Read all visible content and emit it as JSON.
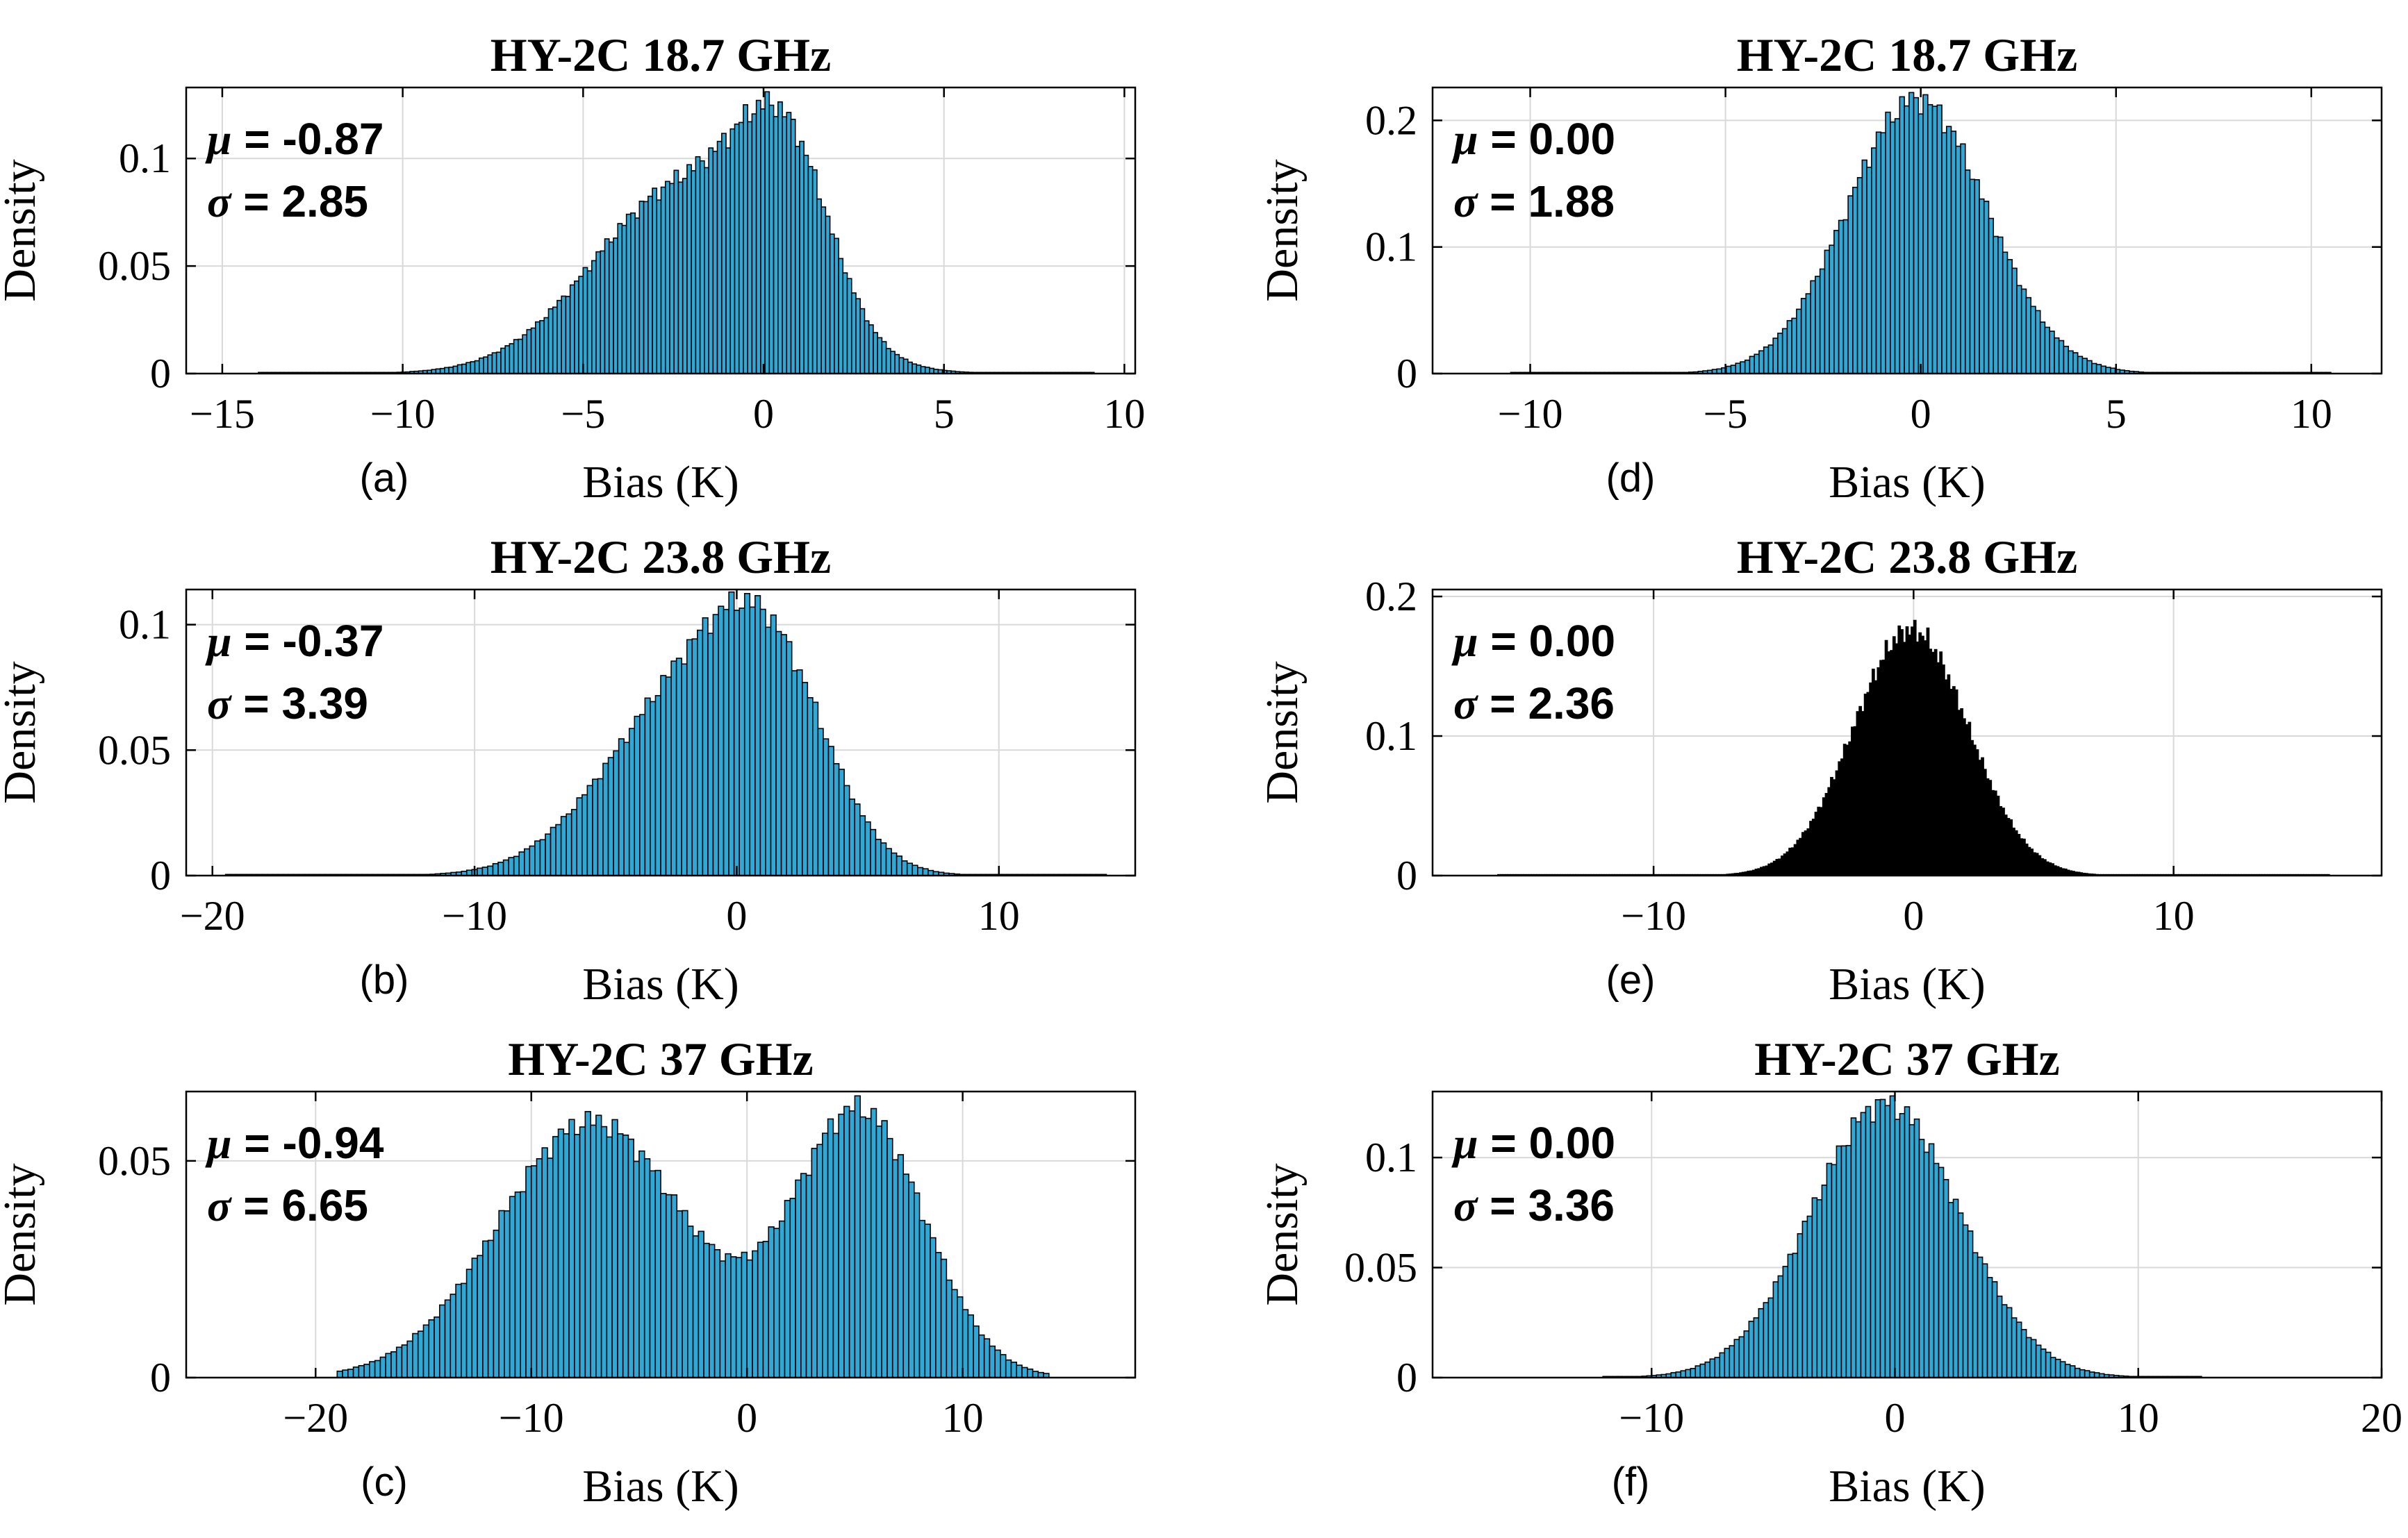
{
  "chart_data": [
    {
      "type": "bar",
      "panel_label": "(a)",
      "title": "HY-2C 18.7 GHz",
      "xlabel": "Bias (K)",
      "ylabel": "Density",
      "xlim": [
        -16,
        10.3
      ],
      "ylim": [
        0,
        0.133
      ],
      "xticks": [
        -15,
        -10,
        -5,
        0,
        5,
        10
      ],
      "xtick_labels": [
        "−15",
        "−10",
        "−5",
        "0",
        "5",
        "10"
      ],
      "yticks": [
        0,
        0.05,
        0.1
      ],
      "ytick_labels": [
        "0",
        "0.05",
        "0.1"
      ],
      "grid": true,
      "bin_range": [
        -14,
        9.2
      ],
      "bin_width": 0.12,
      "bar_color": "#2ea8d6",
      "mu_text": "= -0.87",
      "sigma_text": "= 2.85",
      "distribution": [
        {
          "weight": 0.7,
          "mean": -2.2,
          "sd": 2.5
        },
        {
          "weight": 0.3,
          "mean": 0.6,
          "sd": 1.25
        }
      ],
      "peak_density": 0.131
    },
    {
      "type": "bar",
      "panel_label": "(d)",
      "title": "HY-2C 18.7 GHz",
      "xlabel": "Bias (K)",
      "ylabel": "Density",
      "xlim": [
        -12.5,
        11.8
      ],
      "ylim": [
        0,
        0.226
      ],
      "xticks": [
        -10,
        -5,
        0,
        5,
        10
      ],
      "xtick_labels": [
        "−10",
        "−5",
        "0",
        "5",
        "10"
      ],
      "yticks": [
        0,
        0.1,
        0.2
      ],
      "ytick_labels": [
        "0",
        "0.1",
        "0.2"
      ],
      "grid": true,
      "bin_range": [
        -10.5,
        10.5
      ],
      "bin_width": 0.12,
      "bar_color": "#2ea8d6",
      "mu_text": "= 0.00",
      "sigma_text": "= 1.88",
      "distribution": [
        {
          "weight": 1.0,
          "mean": -0.1,
          "sd": 1.78
        }
      ],
      "peak_density": 0.222
    },
    {
      "type": "bar",
      "panel_label": "(b)",
      "title": "HY-2C 23.8 GHz",
      "xlabel": "Bias (K)",
      "ylabel": "Density",
      "xlim": [
        -21,
        15.2
      ],
      "ylim": [
        0,
        0.114
      ],
      "xticks": [
        -20,
        -10,
        0,
        10
      ],
      "xtick_labels": [
        "−20",
        "−10",
        "0",
        "10"
      ],
      "yticks": [
        0,
        0.05,
        0.1
      ],
      "ytick_labels": [
        "0",
        "0.05",
        "0.1"
      ],
      "grid": true,
      "bin_range": [
        -19.5,
        14
      ],
      "bin_width": 0.2,
      "bar_color": "#2ea8d6",
      "mu_text": "= -0.37",
      "sigma_text": "= 3.39",
      "distribution": [
        {
          "weight": 0.6,
          "mean": -2.0,
          "sd": 3.1
        },
        {
          "weight": 0.4,
          "mean": 1.3,
          "sd": 2.2
        }
      ],
      "peak_density": 0.113
    },
    {
      "type": "bar",
      "panel_label": "(e)",
      "title": "HY-2C 23.8 GHz",
      "xlabel": "Bias (K)",
      "ylabel": "Density",
      "xlim": [
        -18.5,
        18
      ],
      "ylim": [
        0,
        0.205
      ],
      "xticks": [
        -10,
        0,
        10
      ],
      "xtick_labels": [
        "−10",
        "0",
        "10"
      ],
      "yticks": [
        0,
        0.1,
        0.2
      ],
      "ytick_labels": [
        "0",
        "0.1",
        "0.2"
      ],
      "grid": true,
      "bin_range": [
        -16,
        16
      ],
      "bin_width": 0.1,
      "bar_color": "#000000",
      "mu_text": "= 0.00",
      "sigma_text": "= 2.36",
      "distribution": [
        {
          "weight": 1.0,
          "mean": -0.1,
          "sd": 2.2
        }
      ],
      "peak_density": 0.183
    },
    {
      "type": "bar",
      "panel_label": "(c)",
      "title": "HY-2C 37 GHz",
      "xlabel": "Bias (K)",
      "ylabel": "Density",
      "xlim": [
        -26,
        18
      ],
      "ylim": [
        0,
        0.066
      ],
      "xticks": [
        -20,
        -10,
        0,
        10
      ],
      "xtick_labels": [
        "−20",
        "−10",
        "0",
        "10"
      ],
      "yticks": [
        0,
        0.05
      ],
      "ytick_labels": [
        "0",
        "0.05"
      ],
      "grid": true,
      "bin_range": [
        -19,
        14
      ],
      "bin_width": 0.25,
      "bar_color": "#2ea8d6",
      "mu_text": "= -0.94",
      "sigma_text": "= 6.65",
      "distribution": [
        {
          "weight": 0.58,
          "mean": -7.2,
          "sd": 4.3
        },
        {
          "weight": 0.42,
          "mean": 5.2,
          "sd": 3.0
        }
      ],
      "peak_density": 0.065
    },
    {
      "type": "bar",
      "panel_label": "(f)",
      "title": "HY-2C 37 GHz",
      "xlabel": "Bias (K)",
      "ylabel": "Density",
      "xlim": [
        -19,
        20
      ],
      "ylim": [
        0,
        0.13
      ],
      "xticks": [
        -10,
        0,
        10,
        20
      ],
      "xtick_labels": [
        "−10",
        "0",
        "10",
        "20"
      ],
      "yticks": [
        0,
        0.05,
        0.1
      ],
      "ytick_labels": [
        "0",
        "0.05",
        "0.1"
      ],
      "grid": true,
      "bin_range": [
        -12,
        12.5
      ],
      "bin_width": 0.2,
      "bar_color": "#2ea8d6",
      "mu_text": "= 0.00",
      "sigma_text": "= 3.36",
      "distribution": [
        {
          "weight": 1.0,
          "mean": -0.4,
          "sd": 3.05
        }
      ],
      "peak_density": 0.128
    }
  ]
}
